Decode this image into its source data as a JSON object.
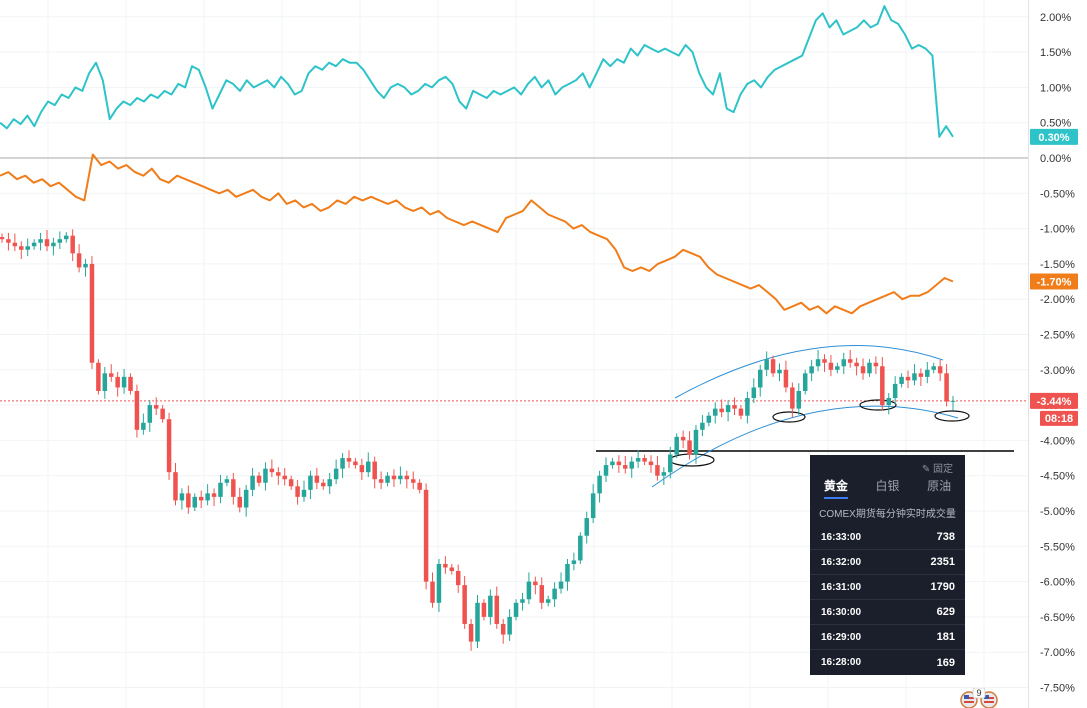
{
  "chart_data": {
    "type": "line",
    "y_axis": {
      "position": "right",
      "unit": "%",
      "range": [
        -7.75,
        2.25
      ],
      "ticks": [
        "2.00%",
        "1.50%",
        "1.00%",
        "0.50%",
        "0.00%",
        "-0.50%",
        "-1.00%",
        "-1.50%",
        "-2.00%",
        "-2.50%",
        "-3.00%",
        "-3.50%",
        "-4.00%",
        "-4.50%",
        "-5.00%",
        "-5.50%",
        "-6.00%",
        "-6.50%",
        "-7.00%",
        "-7.50%"
      ]
    },
    "grid": true,
    "series": [
      {
        "kind": "line",
        "color": "#2ec3c9",
        "last_label": "0.30%",
        "values": [
          0.5,
          0.42,
          0.55,
          0.48,
          0.6,
          0.45,
          0.65,
          0.8,
          0.75,
          0.9,
          0.85,
          1.0,
          0.95,
          1.2,
          1.35,
          1.1,
          0.55,
          0.7,
          0.8,
          0.75,
          0.85,
          0.8,
          0.9,
          0.85,
          0.95,
          0.9,
          1.05,
          1.0,
          1.3,
          1.25,
          1.0,
          0.7,
          0.9,
          1.1,
          1.05,
          0.95,
          1.1,
          1.0,
          1.05,
          1.1,
          1.0,
          1.15,
          1.05,
          0.9,
          0.95,
          1.2,
          1.3,
          1.25,
          1.35,
          1.3,
          1.4,
          1.35,
          1.35,
          1.25,
          1.1,
          0.95,
          0.85,
          1.0,
          1.05,
          1.0,
          0.9,
          0.95,
          1.05,
          1.0,
          1.1,
          1.15,
          1.05,
          0.8,
          0.7,
          0.95,
          0.9,
          0.85,
          0.95,
          0.9,
          0.95,
          1.0,
          0.9,
          1.05,
          1.15,
          1.0,
          1.1,
          0.9,
          1.0,
          1.05,
          1.1,
          1.2,
          1.0,
          1.2,
          1.4,
          1.3,
          1.4,
          1.35,
          1.55,
          1.45,
          1.6,
          1.55,
          1.5,
          1.55,
          1.5,
          1.45,
          1.6,
          1.5,
          1.2,
          1.0,
          0.9,
          1.2,
          0.7,
          0.65,
          0.9,
          1.05,
          1.1,
          1.0,
          1.15,
          1.25,
          1.3,
          1.35,
          1.4,
          1.45,
          1.7,
          1.95,
          2.05,
          1.85,
          1.95,
          1.75,
          1.8,
          1.85,
          1.95,
          1.85,
          1.9,
          2.15,
          1.95,
          1.9,
          1.75,
          1.55,
          1.6,
          1.55,
          1.45,
          0.3,
          0.45,
          0.3
        ]
      },
      {
        "kind": "line",
        "color": "#f07d1a",
        "last_label": "-1.70%",
        "values": [
          -0.25,
          -0.2,
          -0.3,
          -0.25,
          -0.35,
          -0.3,
          -0.4,
          -0.35,
          -0.45,
          -0.55,
          -0.6,
          0.05,
          -0.1,
          -0.05,
          -0.15,
          -0.1,
          -0.2,
          -0.25,
          -0.15,
          -0.3,
          -0.35,
          -0.25,
          -0.3,
          -0.35,
          -0.4,
          -0.45,
          -0.5,
          -0.45,
          -0.55,
          -0.5,
          -0.45,
          -0.55,
          -0.6,
          -0.5,
          -0.65,
          -0.6,
          -0.7,
          -0.65,
          -0.75,
          -0.7,
          -0.6,
          -0.65,
          -0.55,
          -0.6,
          -0.55,
          -0.6,
          -0.65,
          -0.6,
          -0.7,
          -0.75,
          -0.7,
          -0.8,
          -0.75,
          -0.85,
          -0.9,
          -0.95,
          -0.9,
          -0.95,
          -1.0,
          -1.05,
          -0.85,
          -0.8,
          -0.75,
          -0.6,
          -0.7,
          -0.8,
          -0.85,
          -0.9,
          -1.0,
          -0.95,
          -1.05,
          -1.1,
          -1.15,
          -1.3,
          -1.55,
          -1.6,
          -1.55,
          -1.6,
          -1.5,
          -1.45,
          -1.4,
          -1.3,
          -1.35,
          -1.4,
          -1.55,
          -1.65,
          -1.7,
          -1.75,
          -1.8,
          -1.85,
          -1.8,
          -1.9,
          -2.0,
          -2.15,
          -2.1,
          -2.05,
          -2.15,
          -2.1,
          -2.2,
          -2.1,
          -2.15,
          -2.2,
          -2.1,
          -2.05,
          -2.0,
          -1.95,
          -1.9,
          -2.0,
          -1.95,
          -1.95,
          -1.9,
          -1.8,
          -1.7,
          -1.75
        ]
      },
      {
        "kind": "candlestick",
        "up_color": "#26a69a",
        "down_color": "#ef5350",
        "last_label": "-3.44%",
        "countdown": "08:18",
        "closes": [
          -1.15,
          -1.2,
          -1.25,
          -1.3,
          -1.25,
          -1.2,
          -1.15,
          -1.25,
          -1.2,
          -1.15,
          -1.1,
          -1.35,
          -1.55,
          -1.5,
          -2.9,
          -3.3,
          -3.05,
          -3.1,
          -3.25,
          -3.1,
          -3.3,
          -3.85,
          -3.75,
          -3.5,
          -3.55,
          -3.7,
          -4.45,
          -4.85,
          -4.75,
          -4.95,
          -4.8,
          -4.85,
          -4.75,
          -4.8,
          -4.6,
          -4.55,
          -4.8,
          -4.95,
          -4.7,
          -4.5,
          -4.6,
          -4.4,
          -4.45,
          -4.5,
          -4.55,
          -4.65,
          -4.8,
          -4.7,
          -4.5,
          -4.6,
          -4.65,
          -4.55,
          -4.4,
          -4.25,
          -4.3,
          -4.35,
          -4.45,
          -4.3,
          -4.55,
          -4.6,
          -4.5,
          -4.55,
          -4.5,
          -4.55,
          -4.6,
          -4.7,
          -6.0,
          -6.3,
          -5.75,
          -5.8,
          -5.85,
          -6.05,
          -6.6,
          -6.85,
          -6.3,
          -6.5,
          -6.2,
          -6.6,
          -6.75,
          -6.5,
          -6.3,
          -6.25,
          -6.0,
          -6.05,
          -6.3,
          -6.25,
          -6.1,
          -6.0,
          -5.75,
          -5.7,
          -5.35,
          -5.1,
          -4.75,
          -4.5,
          -4.35,
          -4.3,
          -4.35,
          -4.4,
          -4.3,
          -4.25,
          -4.3,
          -4.35,
          -4.5,
          -4.45,
          -4.2,
          -3.95,
          -4.0,
          -4.2,
          -3.85,
          -3.75,
          -3.65,
          -3.55,
          -3.6,
          -3.5,
          -3.55,
          -3.65,
          -3.4,
          -3.25,
          -3.0,
          -2.85,
          -3.05,
          -3.0,
          -3.25,
          -3.55,
          -3.3,
          -3.05,
          -2.95,
          -2.85,
          -2.9,
          -3.0,
          -2.95,
          -2.85,
          -2.9,
          -2.95,
          -3.05,
          -2.9,
          -2.95,
          -3.5,
          -3.4,
          -3.2,
          -3.1,
          -3.15,
          -3.05,
          -3.1,
          -3.0,
          -2.95,
          -3.05,
          -3.45,
          -3.44
        ]
      }
    ],
    "annotations": [
      {
        "kind": "horizontal-line",
        "y": -4.15,
        "color": "#000000"
      },
      {
        "kind": "price-line",
        "y": -3.44,
        "color": "#ef5350",
        "style": "dotted"
      }
    ]
  },
  "panel": {
    "pin_label": "✎ 固定",
    "tabs": [
      "黄金",
      "白银",
      "原油"
    ],
    "active_tab": 0,
    "subtitle": "COMEX期货每分钟实时成交量",
    "rows": [
      {
        "time": "16:33:00",
        "volume": "738"
      },
      {
        "time": "16:32:00",
        "volume": "2351"
      },
      {
        "time": "16:31:00",
        "volume": "1790"
      },
      {
        "time": "16:30:00",
        "volume": "629"
      },
      {
        "time": "16:29:00",
        "volume": "181"
      },
      {
        "time": "16:28:00",
        "volume": "169"
      }
    ]
  },
  "badge": {
    "count": "9"
  }
}
